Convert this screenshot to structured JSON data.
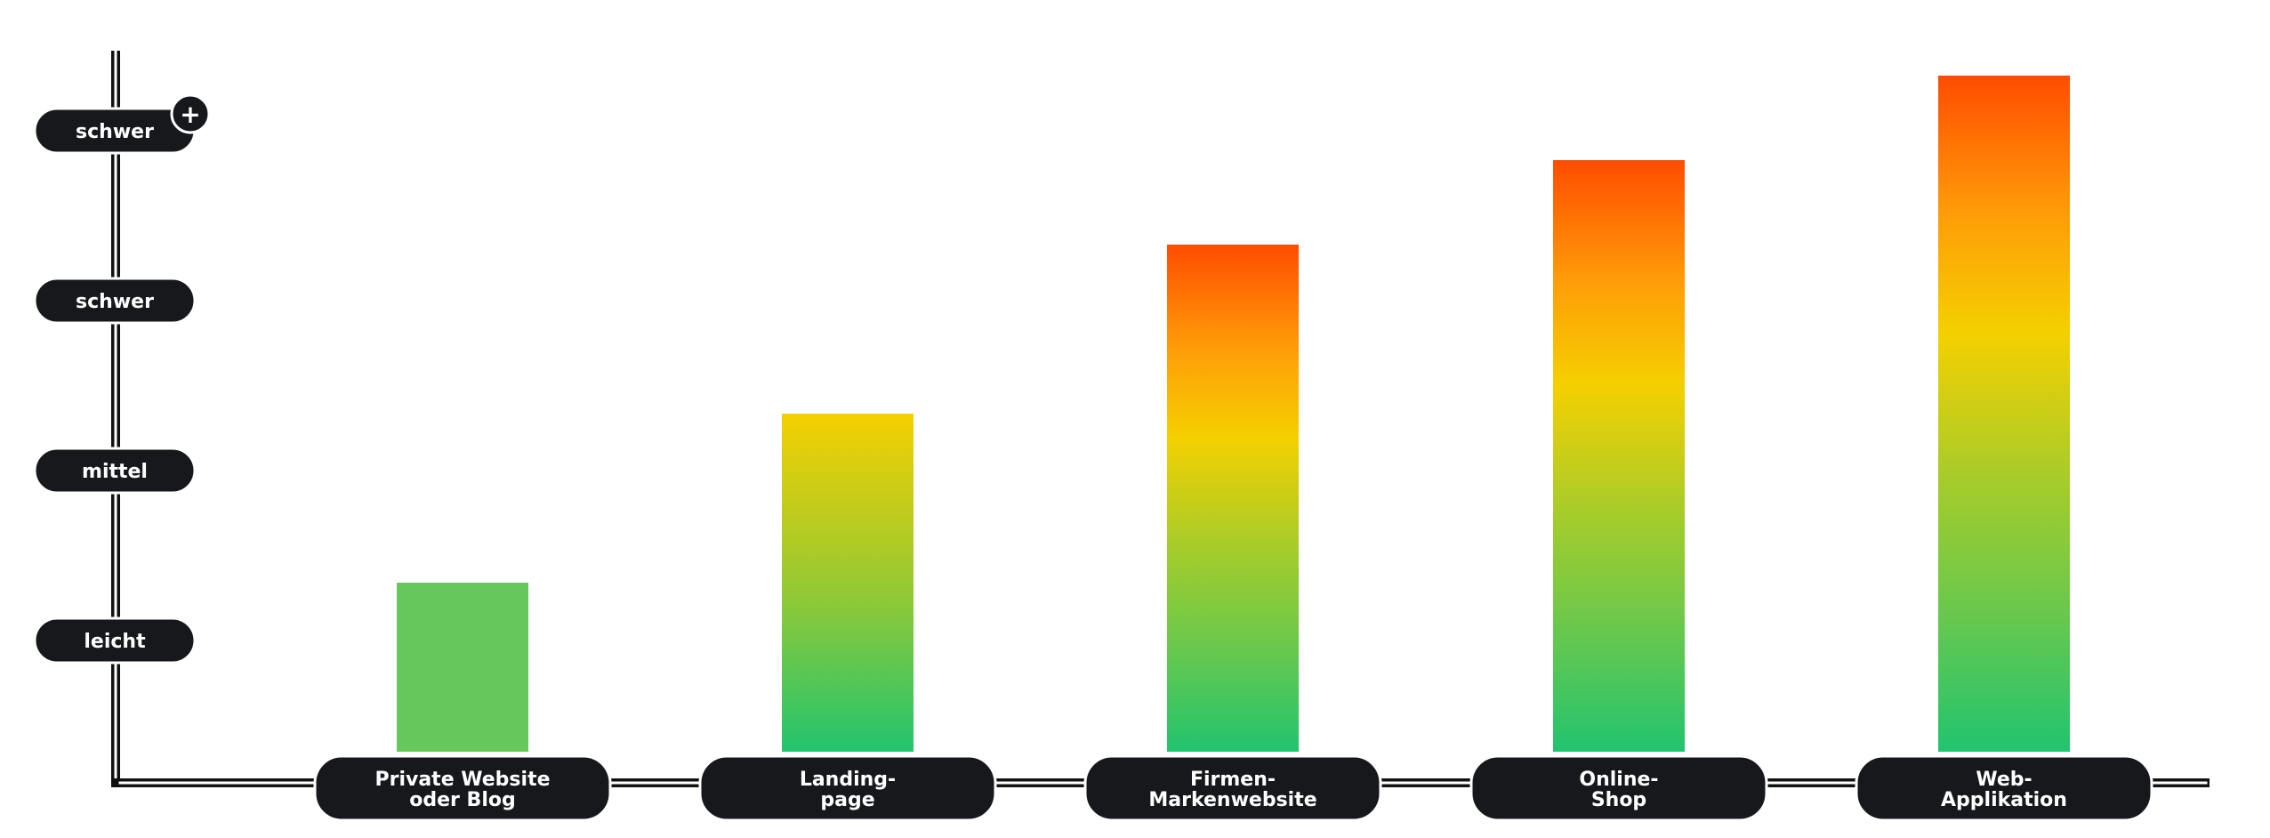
{
  "chart_data": {
    "type": "bar",
    "title": "",
    "xlabel": "",
    "ylabel": "",
    "y_levels": [
      "leicht",
      "mittel",
      "schwer",
      "schwer"
    ],
    "y_level_plus_symbol": "+",
    "categories": [
      "Private Website oder Blog",
      "Landing-page",
      "Firmen-Markenwebsite",
      "Online-Shop",
      "Web-Applikation"
    ],
    "category_label_lines": [
      [
        "Private Website",
        "oder Blog"
      ],
      [
        "Landing-",
        "page"
      ],
      [
        "Firmen-",
        "Markenwebsite"
      ],
      [
        "Online-",
        "Shop"
      ],
      [
        "Web-",
        "Applikation"
      ]
    ],
    "values": [
      1,
      2,
      3,
      3.5,
      4
    ],
    "ylim": [
      0,
      4
    ],
    "grid": false,
    "legend": "none",
    "colors": {
      "axis": "#111111",
      "pill": "#17181c",
      "pill_text": "#ffffff",
      "green": "#22c46f",
      "light_green": "#66c85c",
      "yellow": "#f5d000",
      "orange": "#ff9b08",
      "red": "#ff4c00"
    }
  }
}
